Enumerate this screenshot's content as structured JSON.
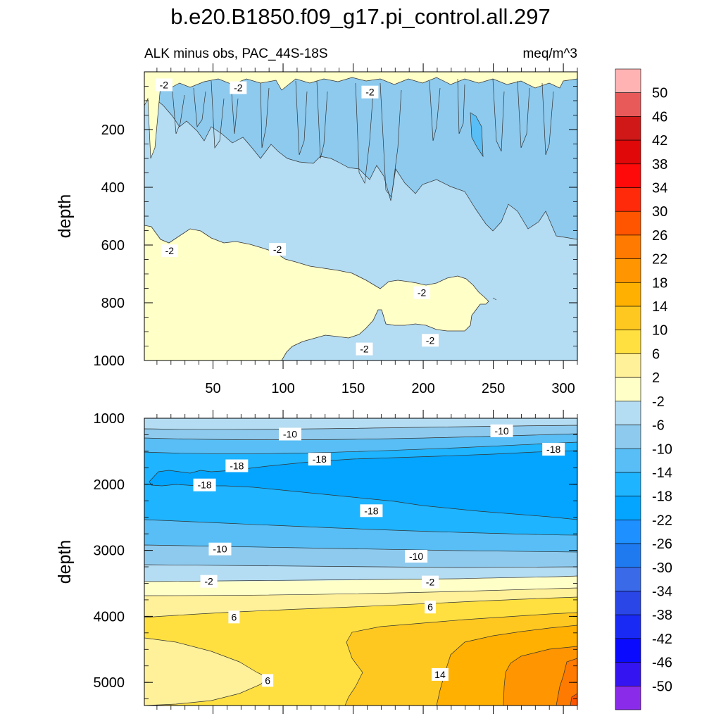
{
  "title": "b.e20.B1850.f09_g17.pi_control.all.297",
  "chart_data": [
    {
      "type": "contour",
      "panel": "upper",
      "subtitle_left": "ALK minus obs, PAC_44S-18S",
      "subtitle_right": "meq/m^3",
      "ylabel": "depth",
      "xlim": [
        1,
        310
      ],
      "ylim": [
        1000,
        0
      ],
      "x_ticks": [
        50,
        100,
        150,
        200,
        250,
        300
      ],
      "x_tick_labels": [
        "50",
        "100",
        "150",
        "200",
        "250",
        "300"
      ],
      "y_ticks": [
        200,
        400,
        600,
        800,
        1000
      ],
      "y_tick_labels": [
        "200",
        "400",
        "600",
        "800",
        "1000"
      ],
      "contour_labels": [
        {
          "text": "-2",
          "x": 15,
          "y": 45
        },
        {
          "text": "-2",
          "x": 68,
          "y": 55
        },
        {
          "text": "-2",
          "x": 162,
          "y": 70
        },
        {
          "text": "-2",
          "x": 19,
          "y": 620
        },
        {
          "text": "-2",
          "x": 96,
          "y": 615
        },
        {
          "text": "-2",
          "x": 199,
          "y": 765
        },
        {
          "text": "-2",
          "x": 205,
          "y": 930
        },
        {
          "text": "-2",
          "x": 158,
          "y": 960
        }
      ]
    },
    {
      "type": "contour",
      "panel": "lower",
      "ylabel": "depth",
      "xlim": [
        1,
        310
      ],
      "ylim": [
        5350,
        1000
      ],
      "y_ticks": [
        1000,
        2000,
        3000,
        4000,
        5000
      ],
      "y_tick_labels": [
        "1000",
        "2000",
        "3000",
        "4000",
        "5000"
      ],
      "contour_labels": [
        {
          "text": "-10",
          "x": 105,
          "y": 1240
        },
        {
          "text": "-10",
          "x": 256,
          "y": 1190
        },
        {
          "text": "-18",
          "x": 67,
          "y": 1720
        },
        {
          "text": "-18",
          "x": 126,
          "y": 1620
        },
        {
          "text": "-18",
          "x": 293,
          "y": 1470
        },
        {
          "text": "-18",
          "x": 44,
          "y": 2010
        },
        {
          "text": "-18",
          "x": 163,
          "y": 2400
        },
        {
          "text": "-10",
          "x": 55,
          "y": 2980
        },
        {
          "text": "-10",
          "x": 195,
          "y": 3090
        },
        {
          "text": "-2",
          "x": 47,
          "y": 3470
        },
        {
          "text": "-2",
          "x": 205,
          "y": 3480
        },
        {
          "text": "6",
          "x": 205,
          "y": 3860
        },
        {
          "text": "6",
          "x": 65,
          "y": 4010
        },
        {
          "text": "6",
          "x": 89,
          "y": 4970
        },
        {
          "text": "14",
          "x": 212,
          "y": 4880
        }
      ]
    }
  ],
  "colorbar": {
    "labels": [
      "50",
      "46",
      "42",
      "38",
      "34",
      "30",
      "26",
      "22",
      "18",
      "14",
      "10",
      "6",
      "2",
      "-2",
      "-6",
      "-10",
      "-14",
      "-18",
      "-22",
      "-26",
      "-30",
      "-34",
      "-38",
      "-42",
      "-46",
      "-50"
    ],
    "colors": [
      "#FFB3B3",
      "#E85A5A",
      "#D01818",
      "#E00808",
      "#FF0A0A",
      "#FF2A0A",
      "#FF5500",
      "#FF7A00",
      "#FF9500",
      "#FFB000",
      "#FFC820",
      "#FFE040",
      "#FFF09A",
      "#FFFFC8",
      "#B4DCF2",
      "#8ECAEE",
      "#58BEF5",
      "#1EB4FF",
      "#03A5FF",
      "#1E90FF",
      "#1F7AF0",
      "#3A6AE8",
      "#2A46E6",
      "#1A2AF5",
      "#0A0AFF",
      "#3414F0",
      "#8A2BEA"
    ]
  }
}
